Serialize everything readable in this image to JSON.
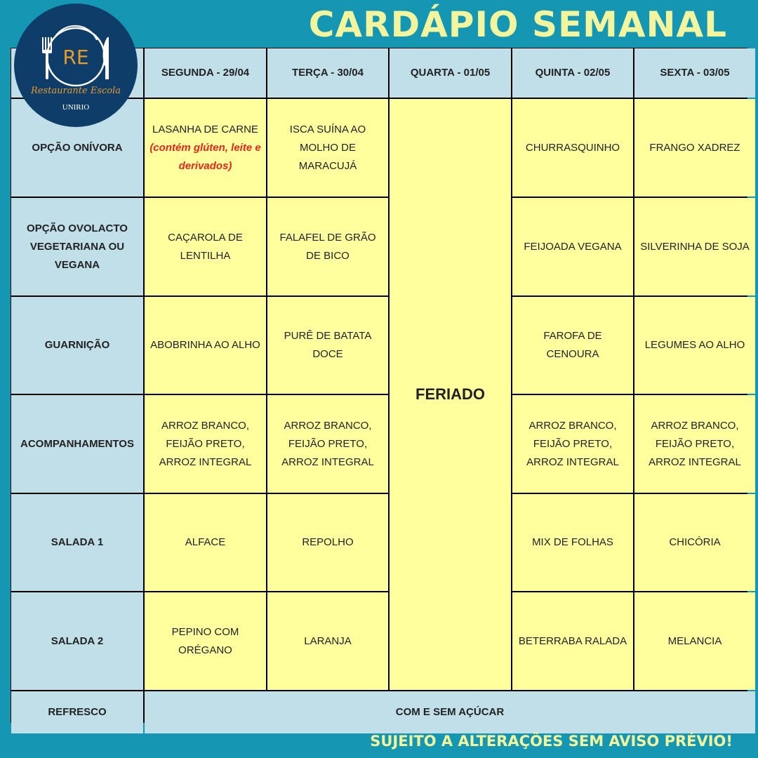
{
  "title": "CARDÁPIO SEMANAL",
  "footer": "SUJEITO A ALTERAÇÕES SEM AVISO PRÉVIO!",
  "logo": {
    "monogram": "RE",
    "name": "Restaurante Escola",
    "org": "UNIRIO"
  },
  "colors": {
    "background": "#1597b4",
    "header_cell": "#c0dfe9",
    "menu_cell": "#ffff9d",
    "title": "#f3f59e",
    "allergen_note": "#e8251c",
    "logo": "#0e3d69"
  },
  "days": [
    "SEGUNDA - 29/04",
    "TERÇA - 30/04",
    "QUARTA - 01/05",
    "QUINTA - 02/05",
    "SEXTA - 03/05"
  ],
  "holiday": "FERIADO",
  "rows": [
    {
      "label": "OPÇÃO ONÍVORA",
      "seg": "LASANHA DE CARNE",
      "seg_note": "(contém glúten, leite e derivados)",
      "ter": "ISCA SUÍNA AO MOLHO DE MARACUJÁ",
      "qui": "CHURRASQUINHO",
      "sex": "FRANGO XADREZ"
    },
    {
      "label": "OPÇÃO OVOLACTO VEGETARIANA OU VEGANA",
      "seg": "CAÇAROLA DE LENTILHA",
      "ter": "FALAFEL DE GRÃO DE BICO",
      "qui": "FEIJOADA VEGANA",
      "sex": "SILVERINHA DE SOJA"
    },
    {
      "label": "GUARNIÇÃO",
      "seg": "ABOBRINHA AO ALHO",
      "ter": "PURÊ DE BATATA DOCE",
      "qui": "FAROFA DE CENOURA",
      "sex": "LEGUMES AO ALHO"
    },
    {
      "label": "ACOMPANHAMENTOS",
      "seg": "ARROZ BRANCO, FEIJÃO PRETO, ARROZ INTEGRAL",
      "ter": "ARROZ BRANCO, FEIJÃO PRETO, ARROZ INTEGRAL",
      "qui": "ARROZ BRANCO, FEIJÃO PRETO, ARROZ INTEGRAL",
      "sex": "ARROZ BRANCO, FEIJÃO PRETO, ARROZ INTEGRAL"
    },
    {
      "label": "SALADA 1",
      "seg": "ALFACE",
      "ter": "REPOLHO",
      "qui": "MIX DE FOLHAS",
      "sex": "CHICÓRIA"
    },
    {
      "label": "SALADA 2",
      "seg": "PEPINO COM ORÉGANO",
      "ter": "LARANJA",
      "qui": "BETERRABA RALADA",
      "sex": "MELANCIA"
    }
  ],
  "refresco": {
    "label": "REFRESCO",
    "value": "COM E SEM AÇÚCAR"
  }
}
